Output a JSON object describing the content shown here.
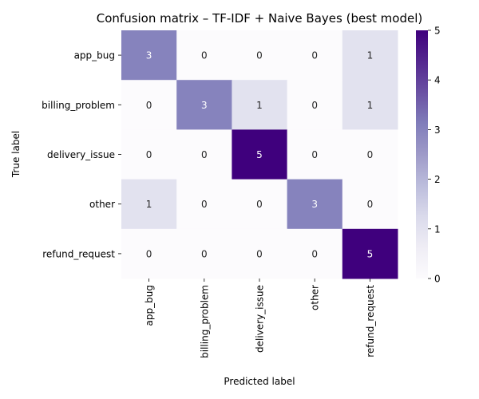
{
  "chart_data": {
    "type": "heatmap",
    "title": "Confusion matrix – TF-IDF + Naive Bayes (best model)",
    "xlabel": "Predicted label",
    "ylabel": "True label",
    "row_labels": [
      "app_bug",
      "billing_problem",
      "delivery_issue",
      "other",
      "refund_request"
    ],
    "col_labels": [
      "app_bug",
      "billing_problem",
      "delivery_issue",
      "other",
      "refund_request"
    ],
    "values": [
      [
        3,
        0,
        0,
        0,
        1
      ],
      [
        0,
        3,
        1,
        0,
        1
      ],
      [
        0,
        0,
        5,
        0,
        0
      ],
      [
        1,
        0,
        0,
        3,
        0
      ],
      [
        0,
        0,
        0,
        0,
        5
      ]
    ],
    "colorbar": {
      "vmin": 0,
      "vmax": 5,
      "ticks": [
        "0",
        "1",
        "2",
        "3",
        "4",
        "5"
      ]
    },
    "colormap": "Purples",
    "colors": {
      "low": "#fcfbfd",
      "mid1": "#dddeee",
      "mid3": "#8884bf",
      "high": "#3f007d",
      "text_light": "#ffffff",
      "text_dark": "#262626"
    },
    "grid": false
  }
}
